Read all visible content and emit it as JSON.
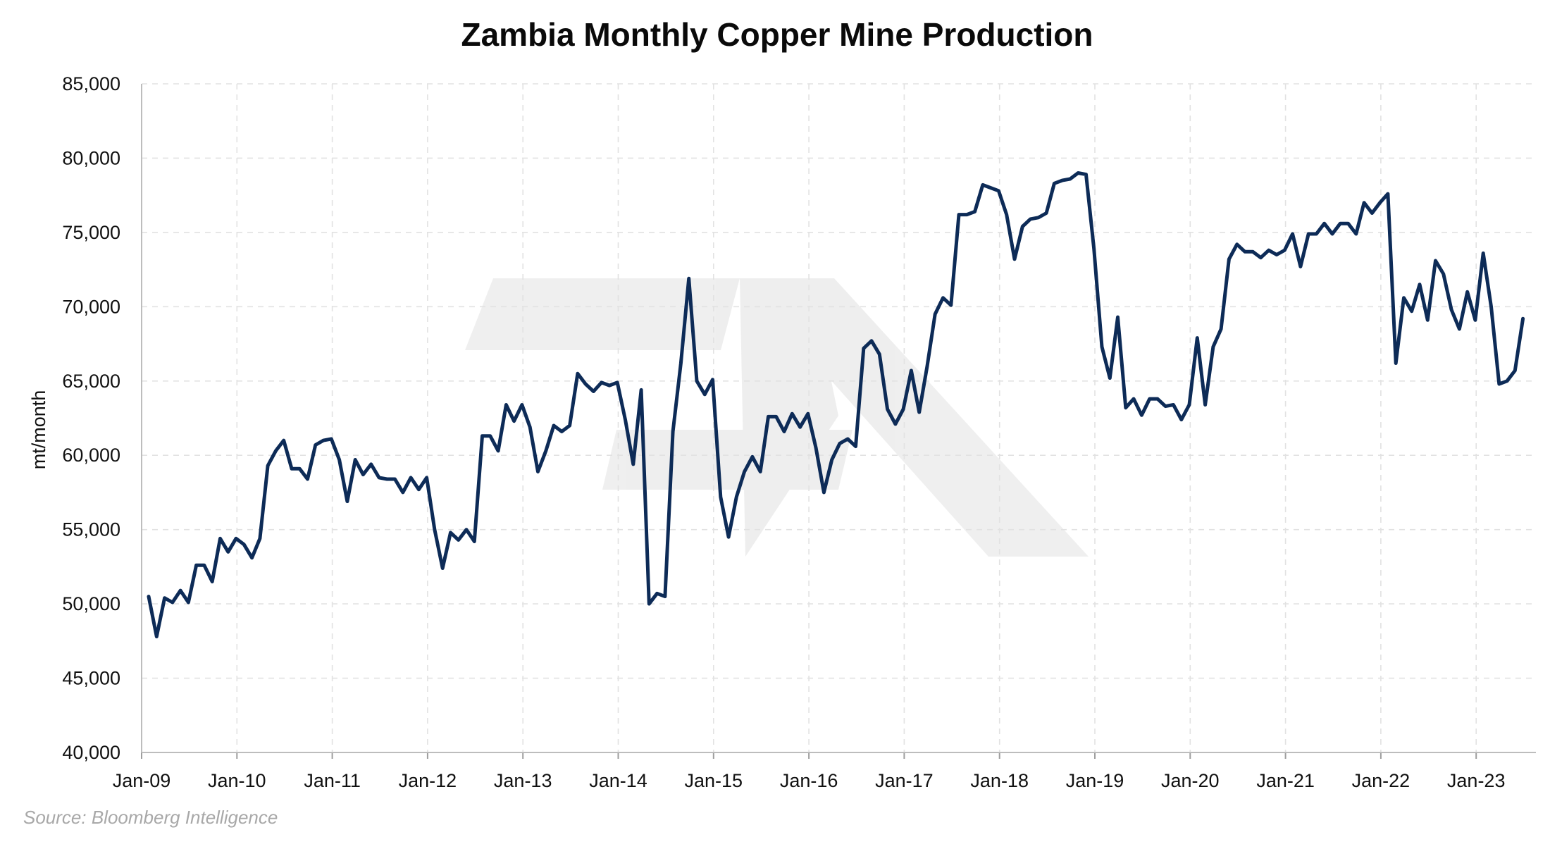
{
  "source": "Source: Bloomberg Intelligence",
  "chart_data": {
    "type": "line",
    "title": "Zambia Monthly Copper Mine Production",
    "xlabel": "",
    "ylabel": "mt/month",
    "ylim": [
      40000,
      85000
    ],
    "yticks": [
      "40,000",
      "45,000",
      "50,000",
      "55,000",
      "60,000",
      "65,000",
      "70,000",
      "75,000",
      "80,000",
      "85,000"
    ],
    "ytick_values": [
      40000,
      45000,
      50000,
      55000,
      60000,
      65000,
      70000,
      75000,
      80000,
      85000
    ],
    "xticks": [
      "Jan-09",
      "Jan-10",
      "Jan-11",
      "Jan-12",
      "Jan-13",
      "Jan-14",
      "Jan-15",
      "Jan-16",
      "Jan-17",
      "Jan-18",
      "Jan-19",
      "Jan-20",
      "Jan-21",
      "Jan-22",
      "Jan-23"
    ],
    "x_start": "Jan-09",
    "x_end": "Aug-23",
    "grid": true,
    "legend": "none",
    "line_color": "#0d2b57",
    "series": [
      {
        "values": [
          50500,
          47800,
          50400,
          50100,
          50900,
          50100,
          52600,
          52600,
          51500,
          54400,
          53500,
          54400,
          54000,
          53100,
          54400,
          59300,
          60300,
          61000,
          59100,
          59100,
          58400,
          60700,
          61000,
          61100,
          59700,
          56900,
          59700,
          58700,
          59400,
          58500,
          58400,
          58400,
          57500,
          58500,
          57700,
          58500,
          55000,
          52400,
          54800,
          54300,
          55000,
          54200,
          61300,
          61300,
          60300,
          63400,
          62300,
          63400,
          61900,
          58900,
          60300,
          62000,
          61600,
          62000,
          65500,
          64800,
          64300,
          64900,
          64700,
          64900,
          62400,
          59400,
          64400,
          50000,
          50700,
          50500,
          61600,
          66200,
          71900,
          65000,
          64100,
          65100,
          57200,
          54500,
          57200,
          58900,
          59900,
          58900,
          62600,
          62600,
          61600,
          62800,
          61900,
          62800,
          60500,
          57500,
          59700,
          60800,
          61100,
          60600,
          67200,
          67700,
          66800,
          63100,
          62100,
          63100,
          65700,
          62900,
          66000,
          69500,
          70600,
          70100,
          76200,
          76200,
          76400,
          78200,
          78000,
          77800,
          76200,
          73200,
          75400,
          75900,
          76000,
          76300,
          78300,
          78500,
          78600,
          79000,
          78900,
          73900,
          67300,
          65200,
          69300,
          63200,
          63800,
          62700,
          63800,
          63800,
          63300,
          63400,
          62400,
          63400,
          67900,
          63400,
          67300,
          68500,
          73200,
          74200,
          73700,
          73700,
          73300,
          73800,
          73500,
          73800,
          74900,
          72700,
          74900,
          74900,
          75600,
          74900,
          75600,
          75600,
          74900,
          77000,
          76300,
          77000,
          77600,
          66200,
          70600,
          69700,
          71500,
          69100,
          73100,
          72200,
          69800,
          68500,
          71000,
          69100,
          73600,
          70000,
          64800,
          65000,
          65700,
          69200
        ]
      }
    ]
  }
}
